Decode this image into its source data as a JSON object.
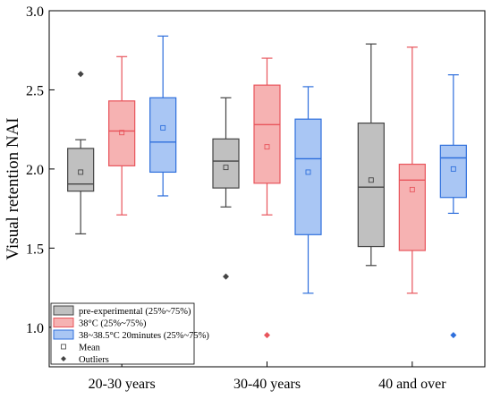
{
  "chart_data": {
    "type": "box",
    "ylabel": "Visual retention NAI",
    "xlabel": "",
    "title": "",
    "ylim": [
      0.75,
      3.0
    ],
    "yticks": [
      "1.0",
      "1.5",
      "2.0",
      "2.5",
      "3.0"
    ],
    "categories": [
      "20-30 years",
      "30-40 years",
      "40 and over"
    ],
    "series": [
      {
        "name": "pre-experimental (25%~75%)",
        "fill": "#c0c0c0",
        "stroke": "#444444",
        "boxes": [
          {
            "min": 1.59,
            "q1": 1.86,
            "median": 1.905,
            "q3": 2.13,
            "max": 2.185,
            "mean": 1.98,
            "outliers": [
              2.6
            ]
          },
          {
            "min": 1.76,
            "q1": 1.88,
            "median": 2.05,
            "q3": 2.19,
            "max": 2.45,
            "mean": 2.01,
            "outliers": [
              1.32
            ]
          },
          {
            "min": 1.39,
            "q1": 1.51,
            "median": 1.885,
            "q3": 2.29,
            "max": 2.79,
            "mean": 1.93,
            "outliers": []
          }
        ]
      },
      {
        "name": "38°C (25%~75%)",
        "fill": "#f6b2b2",
        "stroke": "#e8545b",
        "boxes": [
          {
            "min": 1.71,
            "q1": 2.02,
            "median": 2.24,
            "q3": 2.43,
            "max": 2.71,
            "mean": 2.23,
            "outliers": []
          },
          {
            "min": 1.71,
            "q1": 1.91,
            "median": 2.28,
            "q3": 2.53,
            "max": 2.7,
            "mean": 2.14,
            "outliers": [
              0.95
            ]
          },
          {
            "min": 1.215,
            "q1": 1.485,
            "median": 1.93,
            "q3": 2.03,
            "max": 2.77,
            "mean": 1.87,
            "outliers": []
          }
        ]
      },
      {
        "name": "38~38.5°C 20minutes (25%~75%)",
        "fill": "#a9c6f4",
        "stroke": "#2e6fdc",
        "boxes": [
          {
            "min": 1.83,
            "q1": 1.98,
            "median": 2.17,
            "q3": 2.45,
            "max": 2.84,
            "mean": 2.26,
            "outliers": []
          },
          {
            "min": 1.215,
            "q1": 1.585,
            "median": 2.065,
            "q3": 2.315,
            "max": 2.52,
            "mean": 1.98,
            "outliers": []
          },
          {
            "min": 1.72,
            "q1": 1.82,
            "median": 2.07,
            "q3": 2.15,
            "max": 2.595,
            "mean": 2.0,
            "outliers": [
              0.95
            ]
          }
        ]
      }
    ],
    "legend": {
      "placement": "bottom-left",
      "entries": [
        {
          "label": "pre-experimental (25%~75%)",
          "kind": "box",
          "series": 0
        },
        {
          "label": "38°C (25%~75%)",
          "kind": "box",
          "series": 1
        },
        {
          "label": "38~38.5°C 20minutes (25%~75%)",
          "kind": "box",
          "series": 2
        },
        {
          "label": "Mean",
          "kind": "mean"
        },
        {
          "label": "Outliers",
          "kind": "outlier"
        }
      ]
    },
    "grid": false
  }
}
